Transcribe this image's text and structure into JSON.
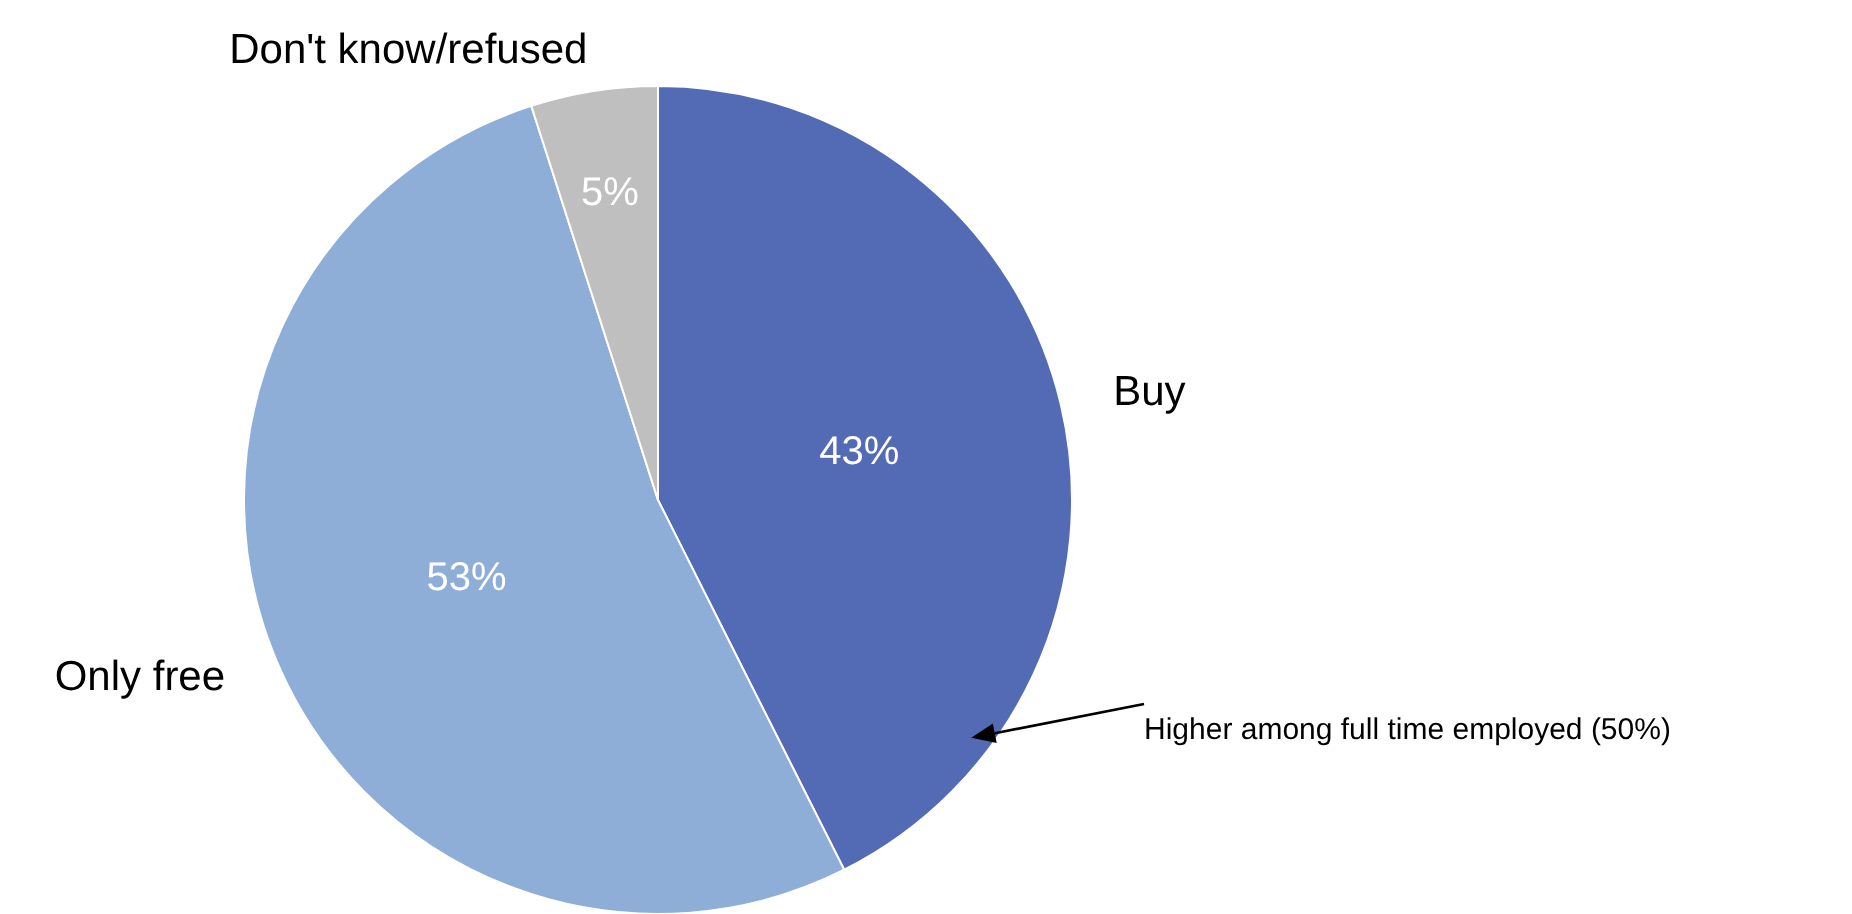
{
  "chart_data": {
    "type": "pie",
    "categories": [
      "Buy",
      "Only free",
      "Don't know/refused"
    ],
    "values": [
      43,
      53,
      5
    ],
    "colors": [
      "#536bb5",
      "#8eaed8",
      "#bfbfbf"
    ],
    "value_labels": [
      "43%",
      "53%",
      "5%"
    ],
    "annotations": [
      "Higher among full time employed (50%)"
    ]
  }
}
